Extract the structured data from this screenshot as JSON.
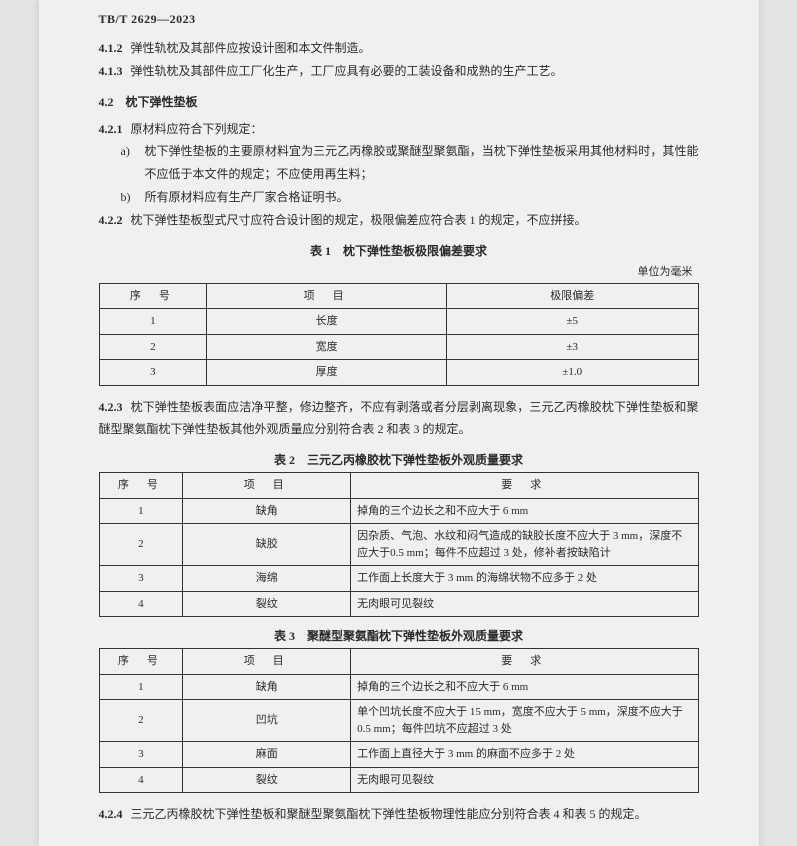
{
  "doc_id": "TB/T 2629—2023",
  "p412": {
    "num": "4.1.2",
    "text": "弹性轨枕及其部件应按设计图和本文件制造。"
  },
  "p413": {
    "num": "4.1.3",
    "text": "弹性轨枕及其部件应工厂化生产，工厂应具有必要的工装设备和成熟的生产工艺。"
  },
  "sec42": "4.2　枕下弹性垫板",
  "p421": {
    "num": "4.2.1",
    "lead": "原材料应符合下列规定：",
    "a": "枕下弹性垫板的主要原材料宜为三元乙丙橡胶或聚醚型聚氨酯，当枕下弹性垫板采用其他材料时，其性能不应低于本文件的规定；不应使用再生料；",
    "b": "所有原材料应有生产厂家合格证明书。"
  },
  "p422": {
    "num": "4.2.2",
    "text": "枕下弹性垫板型式尺寸应符合设计图的规定，极限偏差应符合表 1 的规定，不应拼接。"
  },
  "table1": {
    "title": "表 1　枕下弹性垫板极限偏差要求",
    "unit": "单位为毫米",
    "head": {
      "seq": "序号",
      "item": "项目",
      "val": "极限偏差"
    },
    "rows": [
      {
        "seq": "1",
        "item": "长度",
        "val": "±5"
      },
      {
        "seq": "2",
        "item": "宽度",
        "val": "±3"
      },
      {
        "seq": "3",
        "item": "厚度",
        "val": "±1.0"
      }
    ]
  },
  "p423": {
    "num": "4.2.3",
    "text": "枕下弹性垫板表面应洁净平整，修边整齐，不应有剥落或者分层剥离现象，三元乙丙橡胶枕下弹性垫板和聚醚型聚氨酯枕下弹性垫板其他外观质量应分别符合表 2 和表 3 的规定。"
  },
  "table2": {
    "title": "表 2　三元乙丙橡胶枕下弹性垫板外观质量要求",
    "head": {
      "seq": "序号",
      "item": "项目",
      "req": "要求"
    },
    "rows": [
      {
        "seq": "1",
        "item": "缺角",
        "req": "掉角的三个边长之和不应大于 6 mm"
      },
      {
        "seq": "2",
        "item": "缺胶",
        "req": "因杂质、气泡、水纹和闷气造成的缺胶长度不应大于 3 mm，深度不应大于0.5 mm；每件不应超过 3 处，修补者按缺陷计"
      },
      {
        "seq": "3",
        "item": "海绵",
        "req": "工作面上长度大于 3 mm 的海绵状物不应多于 2 处"
      },
      {
        "seq": "4",
        "item": "裂纹",
        "req": "无肉眼可见裂纹"
      }
    ]
  },
  "table3": {
    "title": "表 3　聚醚型聚氨酯枕下弹性垫板外观质量要求",
    "head": {
      "seq": "序号",
      "item": "项目",
      "req": "要求"
    },
    "rows": [
      {
        "seq": "1",
        "item": "缺角",
        "req": "掉角的三个边长之和不应大于 6 mm"
      },
      {
        "seq": "2",
        "item": "凹坑",
        "req": "单个凹坑长度不应大于 15 mm，宽度不应大于 5 mm，深度不应大于 0.5 mm；每件凹坑不应超过 3 处"
      },
      {
        "seq": "3",
        "item": "麻面",
        "req": "工作面上直径大于 3 mm 的麻面不应多于 2 处"
      },
      {
        "seq": "4",
        "item": "裂纹",
        "req": "无肉眼可见裂纹"
      }
    ]
  },
  "p424": {
    "num": "4.2.4",
    "text": "三元乙丙橡胶枕下弹性垫板和聚醚型聚氨酯枕下弹性垫板物理性能应分别符合表 4 和表 5 的规定。"
  }
}
